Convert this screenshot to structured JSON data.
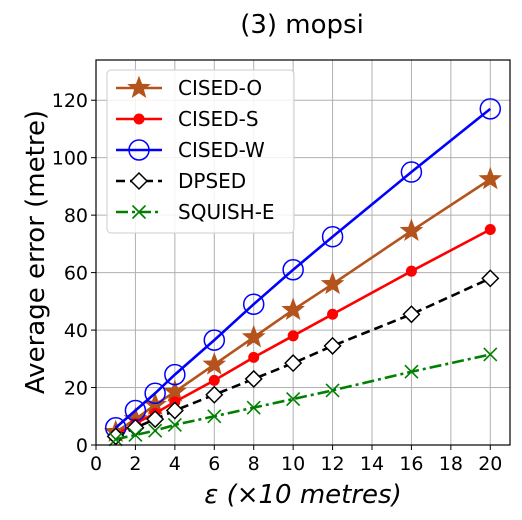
{
  "chart_data": {
    "type": "line",
    "title": "(3) mopsi",
    "xlabel": "ε (×10 metres)",
    "ylabel": "Average error (metre)",
    "xlim": [
      0,
      21
    ],
    "ylim": [
      0,
      134
    ],
    "xticks": [
      0,
      2,
      4,
      6,
      8,
      10,
      12,
      14,
      16,
      18,
      20
    ],
    "yticks": [
      0,
      20,
      40,
      60,
      80,
      100,
      120
    ],
    "grid": true,
    "legend_position": "top-left",
    "x": [
      1,
      2,
      3,
      4,
      6,
      8,
      10,
      12,
      16,
      20
    ],
    "series": [
      {
        "name": "CISED-O",
        "color": "#b5531c",
        "marker": "star",
        "line": "solid",
        "values": [
          4.5,
          9.0,
          14.0,
          18.5,
          28.0,
          37.5,
          47.0,
          56.0,
          74.5,
          92.5
        ]
      },
      {
        "name": "CISED-S",
        "color": "#ff0000",
        "marker": "dot",
        "line": "solid",
        "values": [
          3.5,
          7.5,
          11.0,
          15.0,
          22.5,
          30.5,
          38.0,
          45.5,
          60.5,
          75.0
        ]
      },
      {
        "name": "CISED-W",
        "color": "#0000ff",
        "marker": "circle-open",
        "line": "solid",
        "values": [
          6.0,
          12.0,
          18.0,
          24.5,
          36.5,
          49.0,
          61.0,
          72.5,
          95.0,
          117.0
        ]
      },
      {
        "name": "DPSED",
        "color": "#000000",
        "marker": "diamond-open",
        "line": "dashed",
        "values": [
          3.0,
          6.0,
          9.0,
          12.0,
          17.5,
          23.0,
          28.5,
          34.5,
          45.5,
          58.0
        ]
      },
      {
        "name": "SQUISH-E",
        "color": "#008000",
        "marker": "x",
        "line": "dashdot",
        "values": [
          2.0,
          3.5,
          5.0,
          7.0,
          10.0,
          13.0,
          16.0,
          19.0,
          25.5,
          31.5
        ]
      }
    ]
  }
}
